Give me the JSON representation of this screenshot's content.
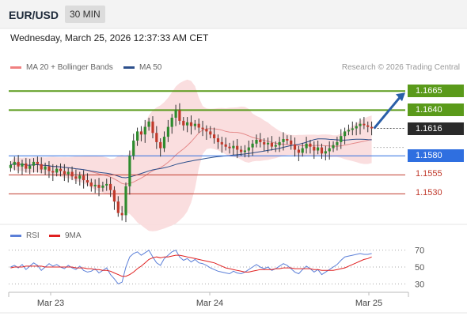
{
  "header": {
    "symbol": "EUR/USD",
    "timeframe": "30 MIN"
  },
  "datetime": "Wednesday, March 25, 2026 12:37:33 AM CET",
  "legend": {
    "bollinger": {
      "label": "MA 20 + Bollinger Bands",
      "color": "#f08080"
    },
    "ma50": {
      "label": "MA 50",
      "color": "#2c4f8c"
    },
    "rsi": {
      "label": "RSI",
      "color": "#5b7fd8"
    },
    "rsi_ma": {
      "label": "9MA",
      "color": "#e02020"
    }
  },
  "credit": "Research © 2026 Trading Central",
  "levels": [
    {
      "value": "1.1665",
      "type": "resistance",
      "color": "#5a9a1a"
    },
    {
      "value": "1.1640",
      "type": "resistance",
      "color": "#5a9a1a"
    },
    {
      "value": "1.1616",
      "type": "current",
      "color": "#2a2a2a"
    },
    {
      "value": "1.1580",
      "type": "pivot",
      "color": "#2f6fe0"
    },
    {
      "value": "1.1555",
      "type": "support",
      "color": "#c0392b"
    },
    {
      "value": "1.1530",
      "type": "support",
      "color": "#c0392b"
    }
  ],
  "chart_data": [
    {
      "type": "candlestick",
      "x_labels": [
        "Mar 23",
        "Mar 24",
        "Mar 25"
      ],
      "y_range": [
        1.149,
        1.1685
      ],
      "current_price": 1.1616,
      "close": [
        1.1568,
        1.1572,
        1.1566,
        1.157,
        1.1563,
        1.1567,
        1.1572,
        1.1569,
        1.1562,
        1.1566,
        1.156,
        1.1558,
        1.1563,
        1.156,
        1.1556,
        1.1559,
        1.1553,
        1.155,
        1.1554,
        1.1548,
        1.1545,
        1.154,
        1.1542,
        1.1538,
        1.1541,
        1.1543,
        1.1535,
        1.152,
        1.1505,
        1.1502,
        1.154,
        1.158,
        1.16,
        1.1612,
        1.1608,
        1.1618,
        1.1625,
        1.161,
        1.1598,
        1.159,
        1.1605,
        1.1618,
        1.163,
        1.164,
        1.1626,
        1.162,
        1.1624,
        1.1619,
        1.1622,
        1.1617,
        1.1615,
        1.1612,
        1.1608,
        1.1603,
        1.1598,
        1.1595,
        1.1592,
        1.159,
        1.1593,
        1.1588,
        1.1585,
        1.1587,
        1.1591,
        1.1596,
        1.1601,
        1.1598,
        1.1595,
        1.1597,
        1.1592,
        1.1594,
        1.1598,
        1.1602,
        1.16,
        1.1595,
        1.1588,
        1.1584,
        1.159,
        1.1596,
        1.1592,
        1.1587,
        1.1591,
        1.1583,
        1.1586,
        1.159,
        1.1594,
        1.1598,
        1.1606,
        1.1612,
        1.1614,
        1.1616,
        1.1619,
        1.1622,
        1.162,
        1.1618,
        1.1616
      ],
      "candle_color_up": "#2e8b2e",
      "candle_color_down": "#c0392b"
    },
    {
      "type": "line",
      "name": "RSI",
      "y_ticks": [
        70,
        50,
        30
      ],
      "y_range": [
        20,
        80
      ],
      "rsi": [
        50,
        52,
        49,
        53,
        47,
        51,
        55,
        52,
        46,
        50,
        54,
        51,
        53,
        50,
        48,
        52,
        49,
        47,
        51,
        46,
        44,
        45,
        48,
        43,
        46,
        49,
        41,
        36,
        30,
        32,
        50,
        62,
        66,
        68,
        64,
        67,
        70,
        62,
        55,
        52,
        60,
        64,
        68,
        70,
        62,
        58,
        60,
        56,
        59,
        55,
        54,
        52,
        49,
        47,
        45,
        44,
        43,
        42,
        45,
        43,
        42,
        44,
        47,
        50,
        53,
        50,
        48,
        50,
        46,
        48,
        51,
        54,
        52,
        48,
        44,
        42,
        47,
        51,
        48,
        44,
        47,
        41,
        44,
        47,
        50,
        53,
        58,
        62,
        63,
        64,
        65,
        66,
        65,
        65,
        66
      ],
      "rsi_ma": [
        49,
        50,
        50,
        50,
        51,
        51,
        51,
        51,
        51,
        50,
        50,
        50,
        50,
        50,
        50,
        50,
        50,
        49,
        49,
        49,
        48,
        48,
        47,
        47,
        46,
        46,
        45,
        43,
        41,
        39,
        39,
        41,
        44,
        48,
        51,
        55,
        59,
        61,
        62,
        61,
        62,
        62,
        63,
        64,
        64,
        63,
        62,
        61,
        60,
        59,
        58,
        57,
        56,
        55,
        53,
        51,
        49,
        48,
        47,
        46,
        45,
        44,
        44,
        45,
        46,
        47,
        47,
        47,
        47,
        48,
        48,
        49,
        49,
        49,
        48,
        48,
        48,
        48,
        48,
        47,
        47,
        46,
        46,
        46,
        46,
        47,
        48,
        49,
        51,
        53,
        55,
        57,
        59,
        60,
        62
      ]
    }
  ]
}
